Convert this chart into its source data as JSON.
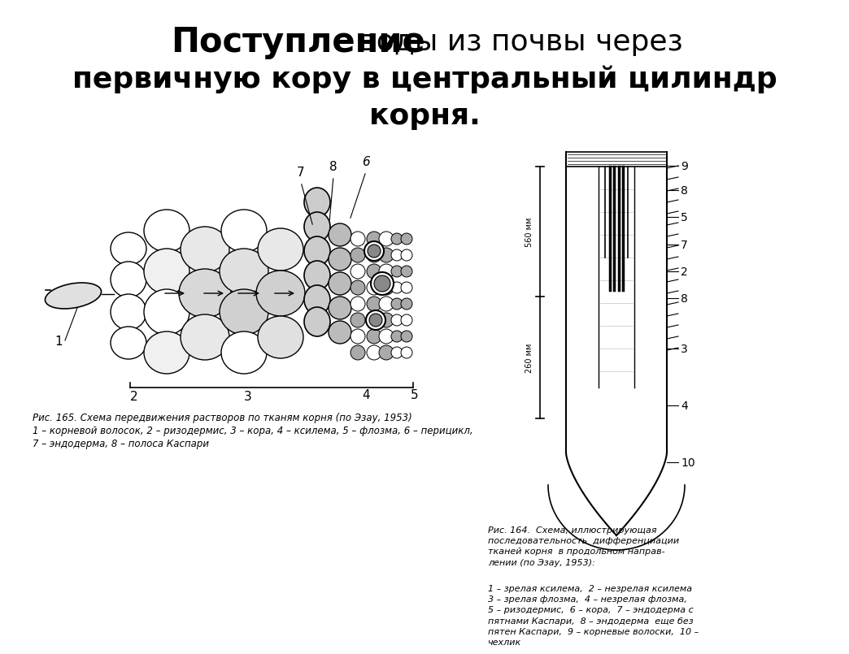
{
  "bg_color": "#ffffff",
  "fig_width": 10.24,
  "fig_height": 7.67,
  "title_line1_bold": "Поступление",
  "title_line1_normal": " воды из почвы через",
  "title_line2": "первичную кору в центральный цилиндр",
  "title_line3": "корня.",
  "caption_left_line1": "Рис. 165. Схема передвижения растворов по тканям корня (по Эзау, 1953)",
  "caption_left_line2": "1 – корневой волосок, 2 – ризодермис, 3 – кора, 4 – ксилема, 5 – флозма, 6 – перицикл,",
  "caption_left_line3": "7 – эндодерма, 8 – полоса Каспари",
  "caption_right_title": "Рис. 164.  Схема, иллюстрирующая\nпоследовательность  дифференциации\nтканей корня  в продольном направ-\nлении (по Эзау, 1953):",
  "caption_right_body": "1 – зрелая ксилема,  2 – незрелая ксилема\n3 – зрелая флозма,  4 – незрелая флозма,\n5 – ризодермис,  6 – кора,  7 – эндодерма с\nпятнами Каспари,  8 – эндодерма  еще без\nпятен Каспари,  9 – корневые волоски,  10 –\nчехлик",
  "text_color": "#000000"
}
